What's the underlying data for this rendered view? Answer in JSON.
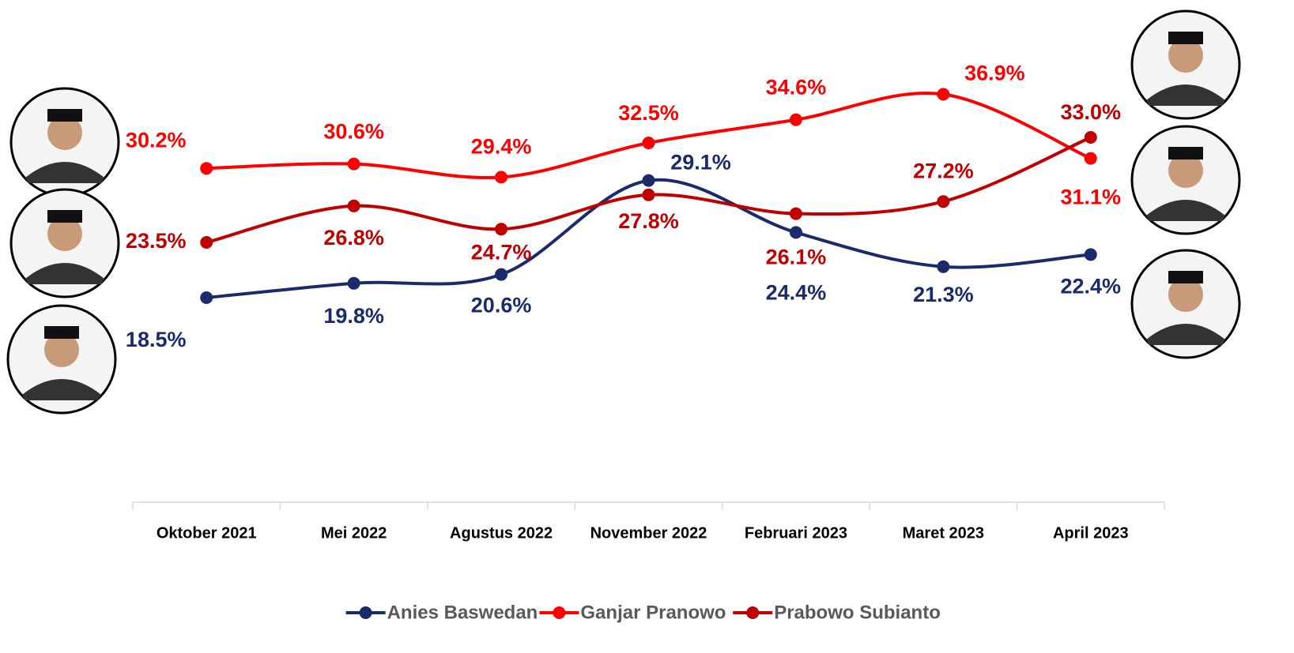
{
  "chart_data": {
    "type": "line",
    "categories": [
      "Oktober 2021",
      "Mei 2022",
      "Agustus 2022",
      "November 2022",
      "Februari 2023",
      "Maret 2023",
      "April 2023"
    ],
    "series": [
      {
        "name": "Anies Baswedan",
        "color": "#1b2a6b",
        "values": [
          18.5,
          19.8,
          20.6,
          29.1,
          24.4,
          21.3,
          22.4
        ],
        "value_labels": [
          "18.5%",
          "19.8%",
          "20.6%",
          "29.1%",
          "24.4%",
          "21.3%",
          "22.4%"
        ]
      },
      {
        "name": "Ganjar Pranowo",
        "color": "#ff0000",
        "values": [
          30.2,
          30.6,
          29.4,
          32.5,
          34.6,
          36.9,
          31.1
        ],
        "value_labels": [
          "30.2%",
          "30.6%",
          "29.4%",
          "32.5%",
          "34.6%",
          "36.9%",
          "31.1%"
        ]
      },
      {
        "name": "Prabowo Subianto",
        "color": "#c00000",
        "values": [
          23.5,
          26.8,
          24.7,
          27.8,
          26.1,
          27.2,
          33.0
        ],
        "value_labels": [
          "23.5%",
          "26.8%",
          "24.7%",
          "27.8%",
          "26.1%",
          "27.2%",
          "33.0%"
        ]
      }
    ],
    "ylim": [
      0,
      45
    ],
    "legend": "bottom"
  }
}
